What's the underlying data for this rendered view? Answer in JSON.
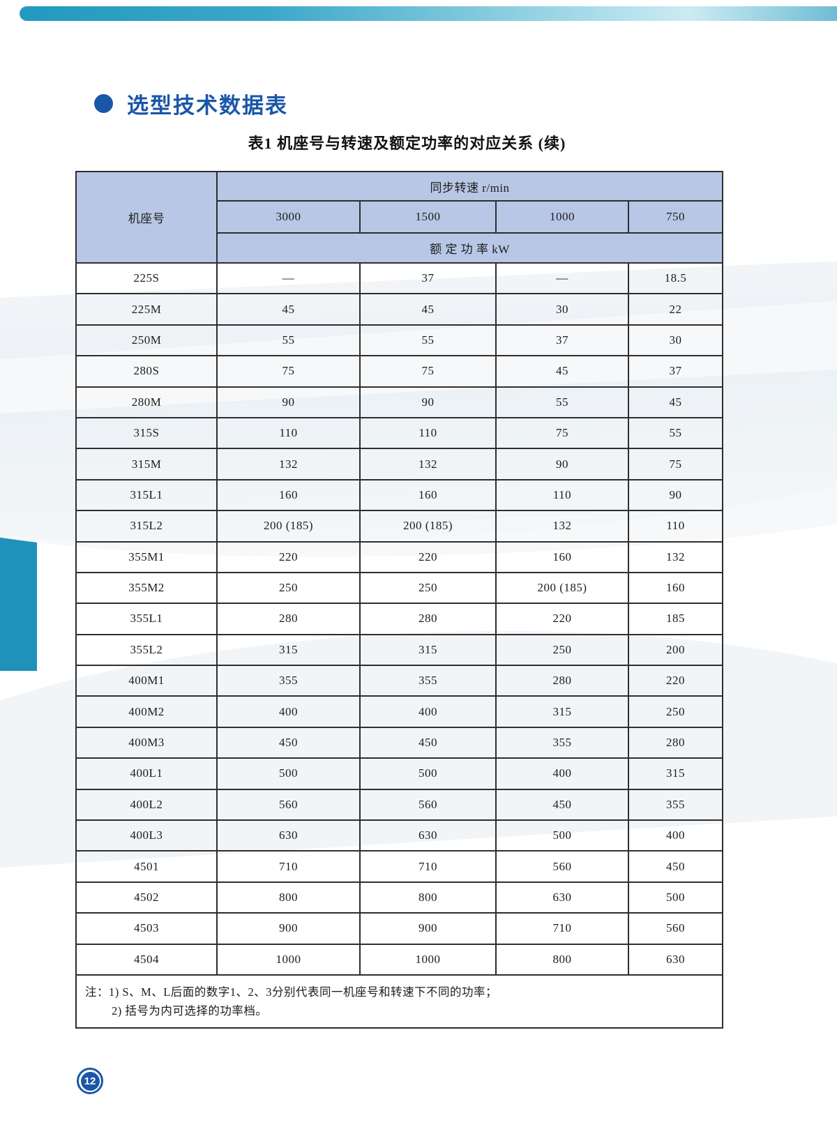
{
  "page": {
    "section_title": "选型技术数据表",
    "page_number": "12"
  },
  "colors": {
    "accent_blue": "#1a56a8",
    "teal": "#1e92ba",
    "table_header_bg": "#b8c7e6"
  },
  "table": {
    "title": "表1 机座号与转速及额定功率的对应关系 (续)",
    "frame_col_header": "机座号",
    "speed_group_header": "同步转速 r/min",
    "speed_cols": [
      "3000",
      "1500",
      "1000",
      "750"
    ],
    "power_group_header": "额 定 功 率 kW",
    "rows": [
      {
        "frame": "225S",
        "values": [
          "—",
          "37",
          "—",
          "18.5"
        ]
      },
      {
        "frame": "225M",
        "values": [
          "45",
          "45",
          "30",
          "22"
        ]
      },
      {
        "frame": "250M",
        "values": [
          "55",
          "55",
          "37",
          "30"
        ]
      },
      {
        "frame": "280S",
        "values": [
          "75",
          "75",
          "45",
          "37"
        ]
      },
      {
        "frame": "280M",
        "values": [
          "90",
          "90",
          "55",
          "45"
        ]
      },
      {
        "frame": "315S",
        "values": [
          "110",
          "110",
          "75",
          "55"
        ]
      },
      {
        "frame": "315M",
        "values": [
          "132",
          "132",
          "90",
          "75"
        ]
      },
      {
        "frame": "315L1",
        "values": [
          "160",
          "160",
          "110",
          "90"
        ]
      },
      {
        "frame": "315L2",
        "values": [
          "200 (185)",
          "200 (185)",
          "132",
          "110"
        ]
      },
      {
        "frame": "355M1",
        "values": [
          "220",
          "220",
          "160",
          "132"
        ]
      },
      {
        "frame": "355M2",
        "values": [
          "250",
          "250",
          "200 (185)",
          "160"
        ]
      },
      {
        "frame": "355L1",
        "values": [
          "280",
          "280",
          "220",
          "185"
        ]
      },
      {
        "frame": "355L2",
        "values": [
          "315",
          "315",
          "250",
          "200"
        ]
      },
      {
        "frame": "400M1",
        "values": [
          "355",
          "355",
          "280",
          "220"
        ]
      },
      {
        "frame": "400M2",
        "values": [
          "400",
          "400",
          "315",
          "250"
        ]
      },
      {
        "frame": "400M3",
        "values": [
          "450",
          "450",
          "355",
          "280"
        ]
      },
      {
        "frame": "400L1",
        "values": [
          "500",
          "500",
          "400",
          "315"
        ]
      },
      {
        "frame": "400L2",
        "values": [
          "560",
          "560",
          "450",
          "355"
        ]
      },
      {
        "frame": "400L3",
        "values": [
          "630",
          "630",
          "500",
          "400"
        ]
      },
      {
        "frame": "4501",
        "values": [
          "710",
          "710",
          "560",
          "450"
        ]
      },
      {
        "frame": "4502",
        "values": [
          "800",
          "800",
          "630",
          "500"
        ]
      },
      {
        "frame": "4503",
        "values": [
          "900",
          "900",
          "710",
          "560"
        ]
      },
      {
        "frame": "4504",
        "values": [
          "1000",
          "1000",
          "800",
          "630"
        ]
      }
    ],
    "notes": [
      "注：1) S、M、L后面的数字1、2、3分别代表同一机座号和转速下不同的功率；",
      "2) 括号为内可选择的功率档。"
    ]
  }
}
